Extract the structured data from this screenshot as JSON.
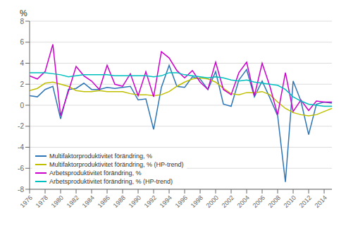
{
  "chart_data": {
    "type": "line",
    "ylabel": "%",
    "x": [
      1976,
      1977,
      1978,
      1979,
      1980,
      1981,
      1982,
      1983,
      1984,
      1985,
      1986,
      1987,
      1988,
      1989,
      1990,
      1991,
      1992,
      1993,
      1994,
      1995,
      1996,
      1997,
      1998,
      1999,
      2000,
      2001,
      2002,
      2003,
      2004,
      2005,
      2006,
      2007,
      2008,
      2009,
      2010,
      2011,
      2012,
      2013,
      2014,
      2015
    ],
    "series": [
      {
        "name": "Multifaktorproduktivitet förändring, %",
        "color": "#2E75B6",
        "values": [
          0.9,
          0.8,
          1.5,
          1.8,
          -1.3,
          1.5,
          1.6,
          2.1,
          1.5,
          1.5,
          1.7,
          1.6,
          1.7,
          1.8,
          0.5,
          0.6,
          -2.3,
          1.7,
          3.8,
          1.8,
          1.7,
          2.7,
          2.5,
          1.5,
          3.2,
          0.1,
          -0.1,
          2.4,
          3.4,
          0.8,
          2.3,
          0.7,
          -1.0,
          -7.3,
          2.3,
          0.4,
          -2.8,
          0.1,
          0.3,
          0.2
        ]
      },
      {
        "name": "Multifaktorproduktivitet förändring, % (HP-trend)",
        "color": "#BFBF00",
        "values": [
          1.4,
          1.6,
          2.1,
          2.2,
          2.0,
          1.8,
          1.4,
          1.3,
          1.3,
          1.4,
          1.3,
          1.3,
          1.3,
          1.1,
          1.0,
          1.0,
          0.9,
          1.0,
          1.3,
          1.8,
          2.2,
          2.5,
          2.6,
          2.5,
          2.2,
          1.6,
          1.1,
          1.0,
          1.2,
          1.2,
          1.3,
          1.0,
          0.3,
          -0.3,
          -0.7,
          -0.9,
          -1.0,
          -0.9,
          -0.6,
          -0.3
        ]
      },
      {
        "name": "Arbetsproduktivitet förändring, %",
        "color": "#CC00CC",
        "values": [
          2.8,
          2.5,
          3.2,
          5.8,
          -1.0,
          1.3,
          3.7,
          2.8,
          2.3,
          1.5,
          3.8,
          2.0,
          1.8,
          3.0,
          0.9,
          3.2,
          0.8,
          5.1,
          4.5,
          3.3,
          2.6,
          3.3,
          2.2,
          1.5,
          4.1,
          1.5,
          1.0,
          3.1,
          4.1,
          0.9,
          4.0,
          1.8,
          -0.9,
          3.1,
          -0.6,
          0.5,
          -0.5,
          0.4,
          0.3,
          0.3
        ]
      },
      {
        "name": "Arbetsproduktivitet förändring, % (HP-trend)",
        "color": "#00BFBF",
        "values": [
          3.1,
          3.1,
          3.1,
          3.0,
          2.9,
          2.7,
          2.8,
          2.9,
          2.9,
          2.9,
          2.9,
          2.8,
          2.8,
          2.8,
          2.8,
          2.8,
          2.7,
          2.8,
          3.1,
          3.1,
          2.9,
          2.8,
          2.7,
          2.6,
          2.7,
          2.6,
          2.4,
          2.3,
          2.4,
          2.2,
          2.1,
          2.0,
          1.9,
          1.5,
          0.8,
          0.4,
          0.1,
          0.0,
          -0.1,
          -0.1
        ]
      }
    ],
    "xlim": [
      1976,
      2015
    ],
    "xticks": [
      1976,
      1978,
      1980,
      1982,
      1984,
      1986,
      1988,
      1990,
      1992,
      1994,
      1996,
      1998,
      2000,
      2002,
      2004,
      2006,
      2008,
      2010,
      2012,
      2014
    ],
    "ylim": [
      -8,
      8
    ],
    "yticks": [
      -8,
      -6,
      -4,
      -2,
      0,
      2,
      4,
      6,
      8
    ],
    "grid": true,
    "legend": "lower left"
  }
}
